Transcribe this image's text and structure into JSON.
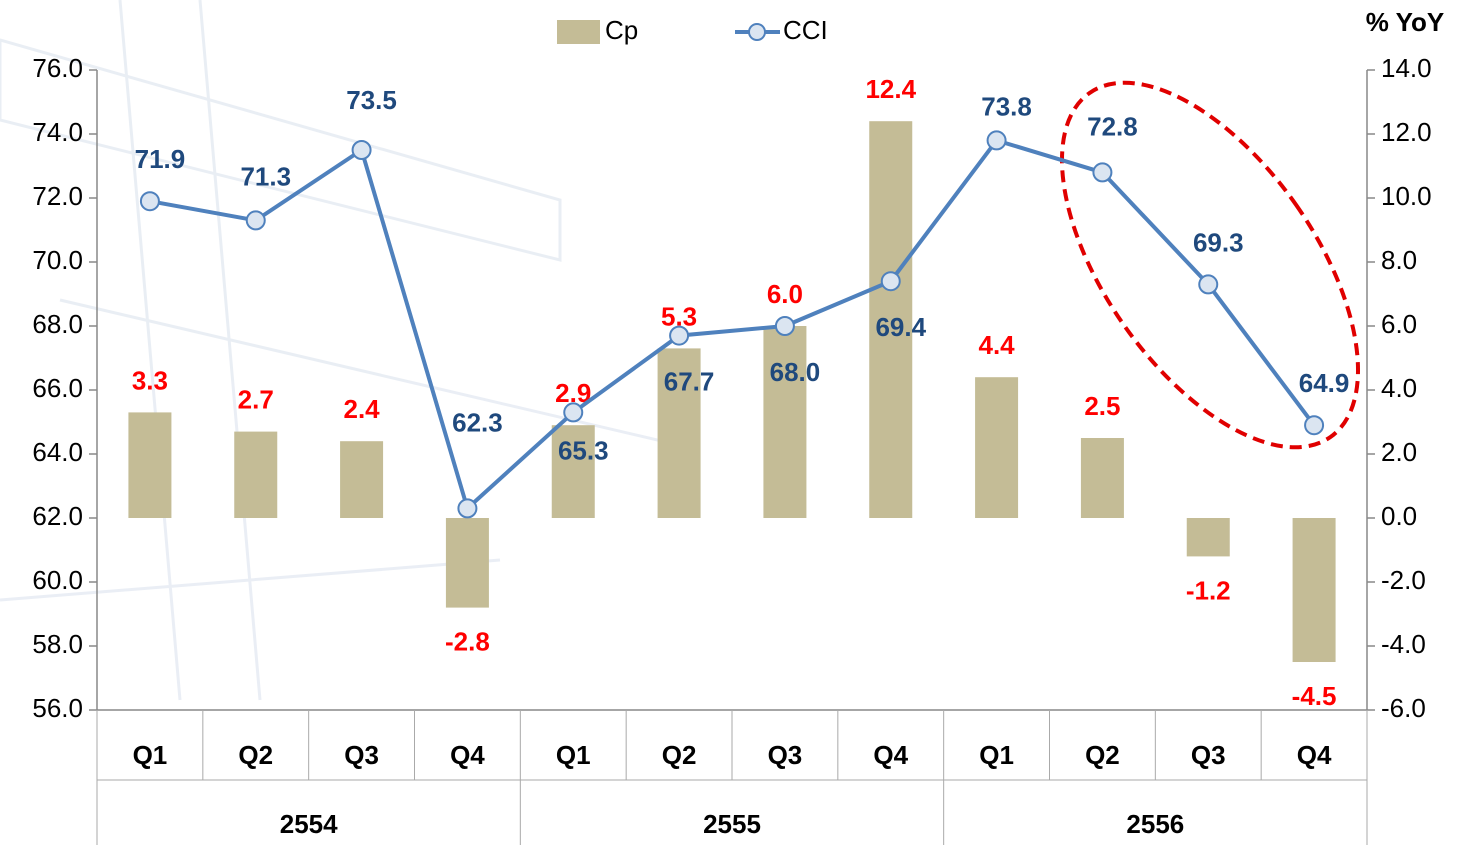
{
  "chart_data": {
    "type": "bar-line",
    "y2_label": "% YoY",
    "categories": [
      "Q1",
      "Q2",
      "Q3",
      "Q4",
      "Q1",
      "Q2",
      "Q3",
      "Q4",
      "Q1",
      "Q2",
      "Q3",
      "Q4"
    ],
    "category_groups": [
      "2554",
      "2555",
      "2556"
    ],
    "series": [
      {
        "name": "Cp",
        "type": "bar",
        "axis": "y2",
        "color": "#c4bc96",
        "label_color": "#ff0000",
        "values": [
          3.3,
          2.7,
          2.4,
          -2.8,
          2.9,
          5.3,
          6.0,
          12.4,
          4.4,
          2.5,
          -1.2,
          -4.5
        ],
        "value_labels": [
          "3.3",
          "2.7",
          "2.4",
          "-2.8",
          "2.9",
          "5.3",
          "6.0",
          "12.4",
          "4.4",
          "2.5",
          "-1.2",
          "-4.5"
        ]
      },
      {
        "name": "CCI",
        "type": "line",
        "axis": "y",
        "color": "#4f81bd",
        "marker_fill": "#dbe5f1",
        "label_color": "#1f497d",
        "values": [
          71.9,
          71.3,
          73.5,
          62.3,
          65.3,
          67.7,
          68.0,
          69.4,
          73.8,
          72.8,
          69.3,
          64.9
        ],
        "value_labels": [
          "71.9",
          "71.3",
          "73.5",
          "62.3",
          "65.3",
          "67.7",
          "68.0",
          "69.4",
          "73.8",
          "72.8",
          "69.3",
          "64.9"
        ]
      }
    ],
    "ylim": [
      56,
      76
    ],
    "yticks": [
      {
        "value": 56,
        "label": "56.0"
      },
      {
        "value": 58,
        "label": "58.0"
      },
      {
        "value": 60,
        "label": "60.0"
      },
      {
        "value": 62,
        "label": "62.0"
      },
      {
        "value": 64,
        "label": "64.0"
      },
      {
        "value": 66,
        "label": "66.0"
      },
      {
        "value": 68,
        "label": "68.0"
      },
      {
        "value": 70,
        "label": "70.0"
      },
      {
        "value": 72,
        "label": "72.0"
      },
      {
        "value": 74,
        "label": "74.0"
      },
      {
        "value": 76,
        "label": "76.0"
      }
    ],
    "y2lim": [
      -6,
      14
    ],
    "y2ticks": [
      {
        "value": -6,
        "label": "-6.0"
      },
      {
        "value": -4,
        "label": "-4.0"
      },
      {
        "value": -2,
        "label": "-2.0"
      },
      {
        "value": 0,
        "label": "0.0"
      },
      {
        "value": 2,
        "label": "2.0"
      },
      {
        "value": 4,
        "label": "4.0"
      },
      {
        "value": 6,
        "label": "6.0"
      },
      {
        "value": 8,
        "label": "8.0"
      },
      {
        "value": 10,
        "label": "10.0"
      },
      {
        "value": 12,
        "label": "12.0"
      },
      {
        "value": 14,
        "label": "14.0"
      }
    ],
    "grid": false
  }
}
